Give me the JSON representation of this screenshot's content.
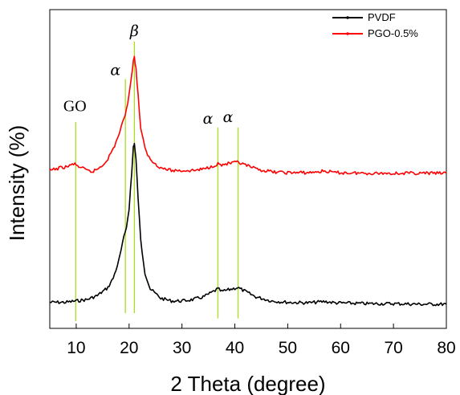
{
  "chart_data": {
    "type": "line",
    "xlabel": "2 Theta (degree)",
    "ylabel": "Intensity (%)",
    "xlim": [
      5,
      80
    ],
    "x_ticks": [
      "10",
      "20",
      "30",
      "40",
      "50",
      "60",
      "70",
      "80"
    ],
    "y_ticks_shown": false,
    "grid": false,
    "legend_position": "top-right",
    "series": [
      {
        "name": "PVDF",
        "color": "#000000",
        "points": [
          [
            5,
            0.07
          ],
          [
            8,
            0.07
          ],
          [
            10,
            0.075
          ],
          [
            12,
            0.08
          ],
          [
            14,
            0.095
          ],
          [
            16,
            0.125
          ],
          [
            17,
            0.16
          ],
          [
            18,
            0.22
          ],
          [
            19,
            0.31
          ],
          [
            19.5,
            0.35
          ],
          [
            20,
            0.42
          ],
          [
            20.5,
            0.55
          ],
          [
            20.8,
            0.65
          ],
          [
            21,
            0.66
          ],
          [
            21.3,
            0.6
          ],
          [
            21.7,
            0.46
          ],
          [
            22.2,
            0.3
          ],
          [
            23,
            0.18
          ],
          [
            24,
            0.12
          ],
          [
            26,
            0.085
          ],
          [
            28,
            0.075
          ],
          [
            30,
            0.075
          ],
          [
            32,
            0.08
          ],
          [
            34,
            0.09
          ],
          [
            35.5,
            0.105
          ],
          [
            36.8,
            0.12
          ],
          [
            37.5,
            0.11
          ],
          [
            38.5,
            0.115
          ],
          [
            40.5,
            0.125
          ],
          [
            42,
            0.11
          ],
          [
            44,
            0.09
          ],
          [
            47,
            0.075
          ],
          [
            50,
            0.07
          ],
          [
            54,
            0.068
          ],
          [
            57,
            0.073
          ],
          [
            59,
            0.068
          ],
          [
            65,
            0.065
          ],
          [
            70,
            0.065
          ],
          [
            75,
            0.063
          ],
          [
            80,
            0.063
          ]
        ]
      },
      {
        "name": "PGO-0.5%",
        "color": "#ff0000",
        "points": [
          [
            5,
            0.56
          ],
          [
            7,
            0.57
          ],
          [
            8.5,
            0.575
          ],
          [
            9.5,
            0.585
          ],
          [
            10.5,
            0.575
          ],
          [
            12,
            0.56
          ],
          [
            13,
            0.555
          ],
          [
            14,
            0.565
          ],
          [
            15,
            0.58
          ],
          [
            16,
            0.605
          ],
          [
            17,
            0.64
          ],
          [
            18,
            0.69
          ],
          [
            19,
            0.75
          ],
          [
            19.5,
            0.79
          ],
          [
            20,
            0.84
          ],
          [
            20.5,
            0.92
          ],
          [
            20.8,
            0.97
          ],
          [
            21,
            0.98
          ],
          [
            21.3,
            0.94
          ],
          [
            21.7,
            0.84
          ],
          [
            22.2,
            0.72
          ],
          [
            23,
            0.64
          ],
          [
            24,
            0.6
          ],
          [
            26,
            0.57
          ],
          [
            28,
            0.56
          ],
          [
            30,
            0.56
          ],
          [
            32,
            0.56
          ],
          [
            34,
            0.565
          ],
          [
            35.5,
            0.575
          ],
          [
            36.8,
            0.585
          ],
          [
            37.5,
            0.58
          ],
          [
            38.5,
            0.585
          ],
          [
            40.5,
            0.59
          ],
          [
            42,
            0.58
          ],
          [
            44,
            0.565
          ],
          [
            47,
            0.555
          ],
          [
            50,
            0.552
          ],
          [
            54,
            0.552
          ],
          [
            57,
            0.558
          ],
          [
            59,
            0.552
          ],
          [
            65,
            0.55
          ],
          [
            70,
            0.55
          ],
          [
            75,
            0.55
          ],
          [
            80,
            0.55
          ]
        ]
      }
    ],
    "annotations": [
      {
        "text": "GO",
        "x": 9.9,
        "line_from": 0.0,
        "line_to": 0.74,
        "text_y": 0.78,
        "style": "go"
      },
      {
        "text": "α",
        "x": 19.3,
        "line_from": 0.03,
        "line_to": 0.9,
        "text_y": 0.915,
        "style": "greek"
      },
      {
        "text": "β",
        "x": 21.0,
        "line_from": 0.03,
        "line_to": 1.04,
        "text_y": 1.06,
        "style": "greek"
      },
      {
        "text": "α",
        "x": 36.8,
        "line_from": 0.01,
        "line_to": 0.72,
        "text_y": 0.735,
        "style": "greek"
      },
      {
        "text": "α",
        "x": 40.6,
        "line_from": 0.01,
        "line_to": 0.72,
        "text_y": 0.74,
        "style": "greek"
      }
    ],
    "annotation_line_color": "#aadd22"
  }
}
